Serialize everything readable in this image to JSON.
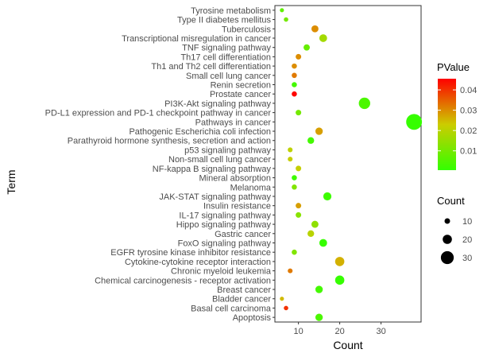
{
  "chart_data": {
    "type": "scatter",
    "xlabel": "Count",
    "ylabel": "Term",
    "xlim": [
      4.3,
      39.7
    ],
    "xticks": [
      10,
      20,
      30
    ],
    "legend_placement": "right",
    "grid": false,
    "color_legend": {
      "title": "PValue",
      "low_color": "#33ff00",
      "mid_color": "#cccc00",
      "high_color": "#ff0000",
      "range": [
        0.0005,
        0.0455
      ],
      "ticks": [
        0.01,
        0.02,
        0.03,
        0.04
      ],
      "tick_labels": [
        "0.01",
        "0.02",
        "0.03",
        "0.04"
      ]
    },
    "size_legend": {
      "title": "Count",
      "values": [
        10,
        20,
        30
      ],
      "labels": [
        "10",
        "20",
        "30"
      ]
    },
    "terms": [
      "Tyrosine metabolism",
      "Type II diabetes mellitus",
      "Tuberculosis",
      "Transcriptional misregulation in cancer",
      "TNF signaling pathway",
      "Th17 cell differentiation",
      "Th1 and Th2 cell differentiation",
      "Small cell lung cancer",
      "Renin secretion",
      "Prostate cancer",
      "PI3K-Akt signaling pathway",
      "PD-L1 expression and PD-1 checkpoint pathway in cancer",
      "Pathways in cancer",
      "Pathogenic Escherichia coli infection",
      "Parathyroid hormone synthesis, secretion and action",
      "p53 signaling pathway",
      "Non-small cell lung cancer",
      "NF-kappa B signaling pathway",
      "Mineral absorption",
      "Melanoma",
      "JAK-STAT signaling pathway",
      "Insulin resistance",
      "IL-17 signaling pathway",
      "Hippo signaling pathway",
      "Gastric cancer",
      "FoxO signaling pathway",
      "EGFR tyrosine kinase inhibitor resistance",
      "Cytokine-cytokine receptor interaction",
      "Chronic myeloid leukemia",
      "Chemical carcinogenesis - receptor activation",
      "Breast cancer",
      "Bladder cancer",
      "Basal cell carcinoma",
      "Apoptosis"
    ],
    "points": [
      {
        "term": "Tyrosine metabolism",
        "count": 6,
        "pvalue": 0.007
      },
      {
        "term": "Type II diabetes mellitus",
        "count": 7,
        "pvalue": 0.01
      },
      {
        "term": "Tuberculosis",
        "count": 14,
        "pvalue": 0.03
      },
      {
        "term": "Transcriptional misregulation in cancer",
        "count": 16,
        "pvalue": 0.017
      },
      {
        "term": "TNF signaling pathway",
        "count": 12,
        "pvalue": 0.008
      },
      {
        "term": "Th17 cell differentiation",
        "count": 10,
        "pvalue": 0.03
      },
      {
        "term": "Th1 and Th2 cell differentiation",
        "count": 9,
        "pvalue": 0.03
      },
      {
        "term": "Small cell lung cancer",
        "count": 9,
        "pvalue": 0.032
      },
      {
        "term": "Renin secretion",
        "count": 9,
        "pvalue": 0.003
      },
      {
        "term": "Prostate cancer",
        "count": 9,
        "pvalue": 0.045
      },
      {
        "term": "PI3K-Akt signaling pathway",
        "count": 26,
        "pvalue": 0.004
      },
      {
        "term": "PD-L1 expression and PD-1 checkpoint pathway in cancer",
        "count": 10,
        "pvalue": 0.01
      },
      {
        "term": "Pathways in cancer",
        "count": 38,
        "pvalue": 0.001
      },
      {
        "term": "Pathogenic Escherichia coli infection",
        "count": 15,
        "pvalue": 0.028
      },
      {
        "term": "Parathyroid hormone synthesis, secretion and action",
        "count": 13,
        "pvalue": 0.003
      },
      {
        "term": "p53 signaling pathway",
        "count": 8,
        "pvalue": 0.021
      },
      {
        "term": "Non-small cell lung cancer",
        "count": 8,
        "pvalue": 0.022
      },
      {
        "term": "NF-kappa B signaling pathway",
        "count": 10,
        "pvalue": 0.022
      },
      {
        "term": "Mineral absorption",
        "count": 9,
        "pvalue": 0.002
      },
      {
        "term": "Melanoma",
        "count": 9,
        "pvalue": 0.012
      },
      {
        "term": "JAK-STAT signaling pathway",
        "count": 17,
        "pvalue": 0.002
      },
      {
        "term": "Insulin resistance",
        "count": 10,
        "pvalue": 0.028
      },
      {
        "term": "IL-17 signaling pathway",
        "count": 10,
        "pvalue": 0.013
      },
      {
        "term": "Hippo signaling pathway",
        "count": 14,
        "pvalue": 0.014
      },
      {
        "term": "Gastric cancer",
        "count": 13,
        "pvalue": 0.02
      },
      {
        "term": "FoxO signaling pathway",
        "count": 16,
        "pvalue": 0.001
      },
      {
        "term": "EGFR tyrosine kinase inhibitor resistance",
        "count": 9,
        "pvalue": 0.012
      },
      {
        "term": "Cytokine-cytokine receptor interaction",
        "count": 20,
        "pvalue": 0.026
      },
      {
        "term": "Chronic myeloid leukemia",
        "count": 8,
        "pvalue": 0.032
      },
      {
        "term": "Chemical carcinogenesis - receptor activation",
        "count": 20,
        "pvalue": 0.001
      },
      {
        "term": "Breast cancer",
        "count": 15,
        "pvalue": 0.003
      },
      {
        "term": "Bladder cancer",
        "count": 6,
        "pvalue": 0.025
      },
      {
        "term": "Basal cell carcinoma",
        "count": 7,
        "pvalue": 0.04
      },
      {
        "term": "Apoptosis",
        "count": 15,
        "pvalue": 0.004
      }
    ]
  }
}
